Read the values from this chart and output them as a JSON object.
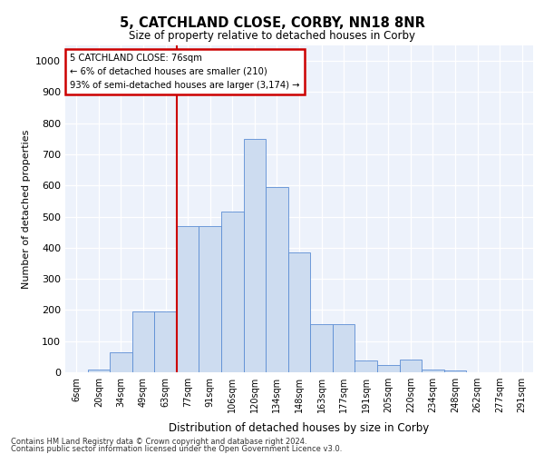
{
  "title": "5, CATCHLAND CLOSE, CORBY, NN18 8NR",
  "subtitle": "Size of property relative to detached houses in Corby",
  "xlabel": "Distribution of detached houses by size in Corby",
  "ylabel": "Number of detached properties",
  "categories": [
    "6sqm",
    "20sqm",
    "34sqm",
    "49sqm",
    "63sqm",
    "77sqm",
    "91sqm",
    "106sqm",
    "120sqm",
    "134sqm",
    "148sqm",
    "163sqm",
    "177sqm",
    "191sqm",
    "205sqm",
    "220sqm",
    "234sqm",
    "248sqm",
    "262sqm",
    "277sqm",
    "291sqm"
  ],
  "values": [
    0,
    10,
    65,
    195,
    195,
    470,
    470,
    515,
    750,
    595,
    385,
    155,
    155,
    37,
    22,
    40,
    10,
    5,
    0,
    0,
    0
  ],
  "bar_color": "#cddcf0",
  "bar_edge_color": "#5b8dd4",
  "red_line_x": 4.5,
  "annotation_line1": "5 CATCHLAND CLOSE: 76sqm",
  "annotation_line2": "← 6% of detached houses are smaller (210)",
  "annotation_line3": "93% of semi-detached houses are larger (3,174) →",
  "annotation_box_color": "#ffffff",
  "annotation_box_edge_color": "#cc0000",
  "ylim": [
    0,
    1050
  ],
  "yticks": [
    0,
    100,
    200,
    300,
    400,
    500,
    600,
    700,
    800,
    900,
    1000
  ],
  "background_color": "#edf2fb",
  "footer1": "Contains HM Land Registry data © Crown copyright and database right 2024.",
  "footer2": "Contains public sector information licensed under the Open Government Licence v3.0."
}
